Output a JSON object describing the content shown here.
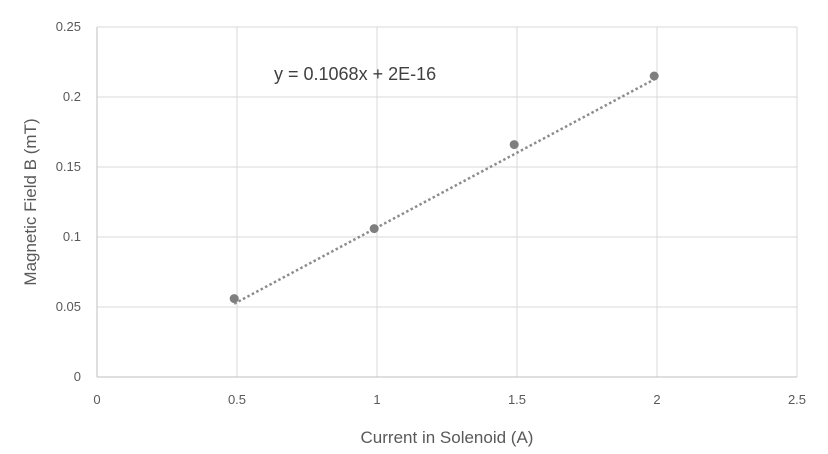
{
  "chart_data": {
    "type": "scatter",
    "title": "",
    "xlabel": "Current in Solenoid (A)",
    "ylabel": "Magnetic Field B (mT)",
    "xlim": [
      0,
      2.5
    ],
    "ylim": [
      0,
      0.25
    ],
    "x_ticks": [
      "0",
      "0.5",
      "1",
      "1.5",
      "2",
      "2.5"
    ],
    "y_ticks": [
      "0",
      "0.05",
      "0.1",
      "0.15",
      "0.2",
      "0.25"
    ],
    "grid": true,
    "series": [
      {
        "x": [
          0.49,
          0.99,
          1.49,
          1.99
        ],
        "y": [
          0.056,
          0.106,
          0.166,
          0.215
        ],
        "color": "#7f7f7f"
      }
    ],
    "trendline": {
      "type": "linear",
      "equation": "y = 0.1068x + 2E-16",
      "slope": 0.1068,
      "intercept": 0,
      "x_range": [
        0.49,
        1.99
      ],
      "style": "dotted",
      "color": "#8c8c8c"
    },
    "legend": "none"
  }
}
